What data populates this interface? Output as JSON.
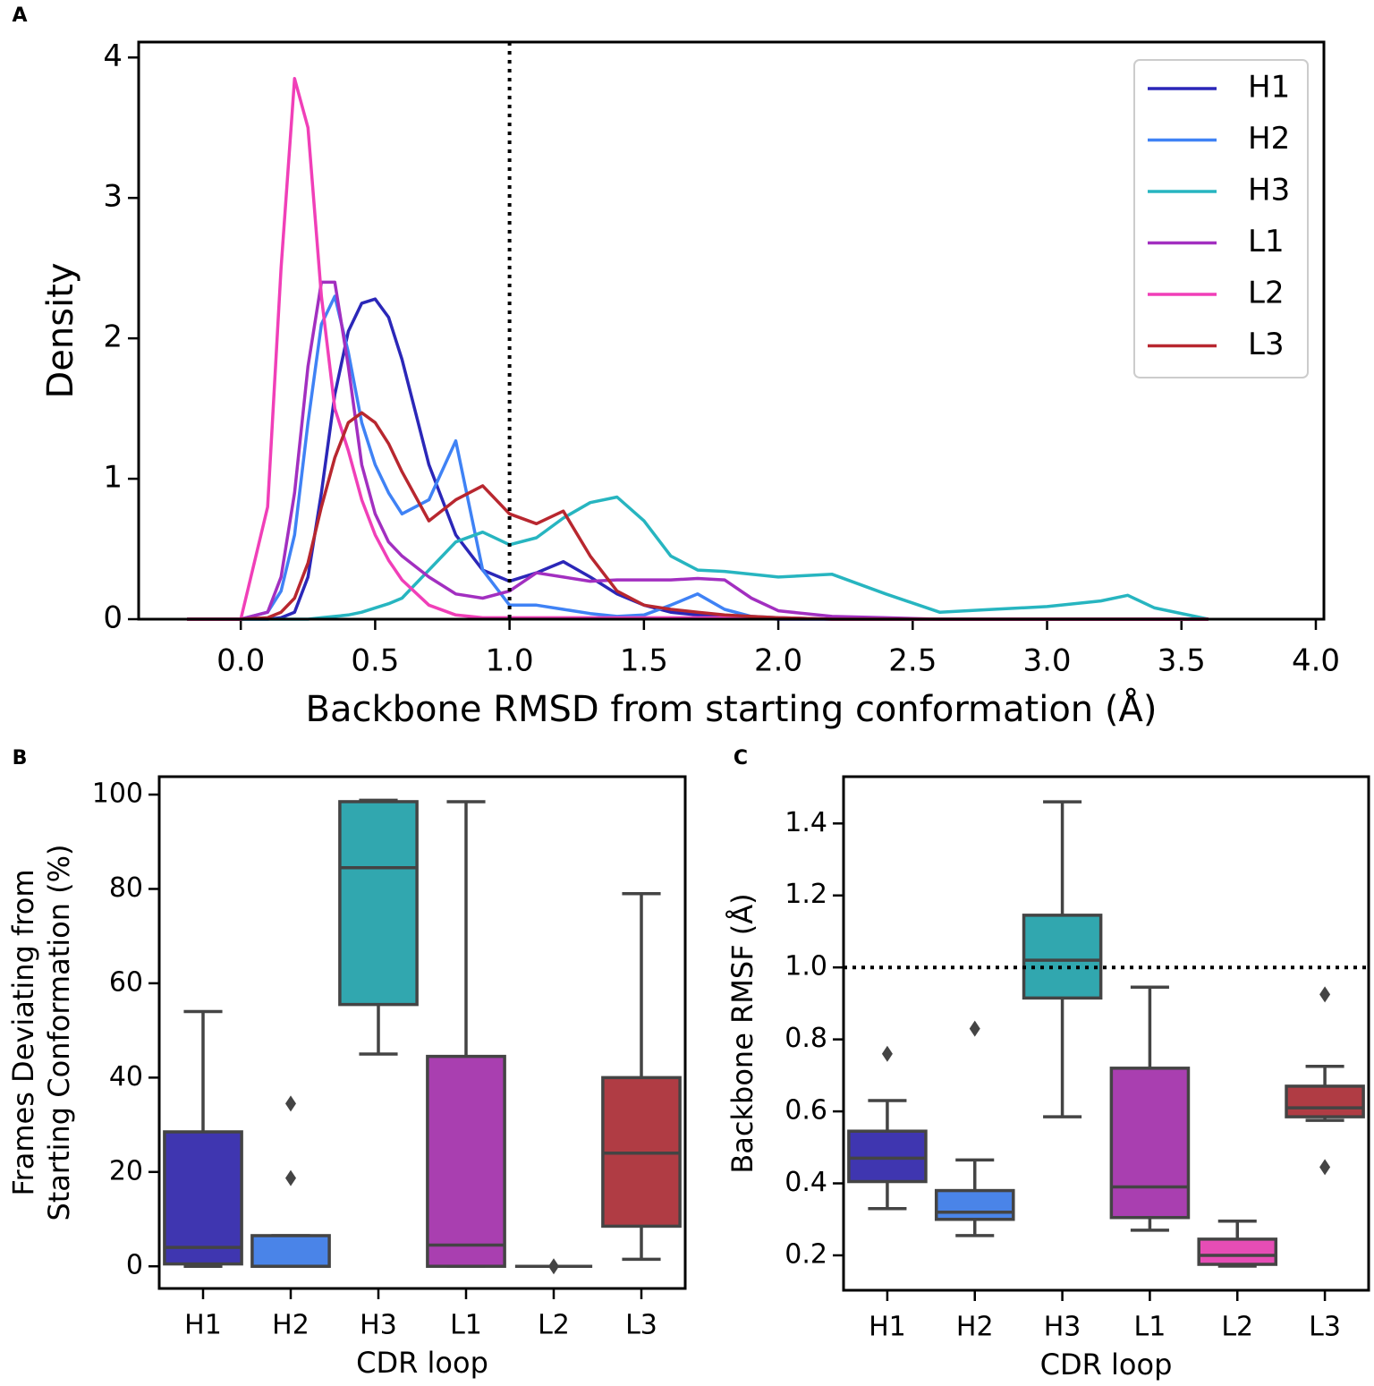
{
  "chart_data": [
    {
      "type": "line",
      "panel_label": "A",
      "xlabel": "Backbone RMSD from starting conformation (Å)",
      "ylabel": "Density",
      "x": [
        -0.2,
        0,
        0.1,
        0.15,
        0.2,
        0.25,
        0.3,
        0.35,
        0.4,
        0.45,
        0.5,
        0.55,
        0.6,
        0.7,
        0.8,
        0.9,
        1.0,
        1.1,
        1.2,
        1.3,
        1.4,
        1.5,
        1.6,
        1.7,
        1.8,
        1.9,
        2.0,
        2.2,
        2.4,
        2.6,
        2.8,
        3.0,
        3.2,
        3.3,
        3.4,
        3.6
      ],
      "series": [
        {
          "name": "H1",
          "color": "#2b27b8",
          "values": [
            0,
            0,
            0,
            0.01,
            0.05,
            0.3,
            0.9,
            1.6,
            2.05,
            2.25,
            2.28,
            2.15,
            1.85,
            1.1,
            0.6,
            0.35,
            0.27,
            0.33,
            0.41,
            0.3,
            0.18,
            0.1,
            0.05,
            0.03,
            0.02,
            0.01,
            0,
            0,
            0,
            0,
            0,
            0,
            0,
            0,
            0,
            0
          ]
        },
        {
          "name": "H2",
          "color": "#3f82f5",
          "values": [
            0,
            0,
            0.05,
            0.2,
            0.6,
            1.4,
            2.1,
            2.3,
            1.9,
            1.4,
            1.1,
            0.9,
            0.75,
            0.85,
            1.27,
            0.35,
            0.1,
            0.1,
            0.07,
            0.04,
            0.02,
            0.03,
            0.1,
            0.18,
            0.07,
            0.02,
            0.01,
            0,
            0,
            0,
            0,
            0,
            0,
            0,
            0,
            0
          ]
        },
        {
          "name": "H3",
          "color": "#27b5c0",
          "values": [
            0,
            0,
            0,
            0,
            0,
            0,
            0.01,
            0.02,
            0.03,
            0.05,
            0.08,
            0.11,
            0.15,
            0.35,
            0.55,
            0.62,
            0.53,
            0.58,
            0.72,
            0.83,
            0.87,
            0.7,
            0.45,
            0.35,
            0.34,
            0.32,
            0.3,
            0.32,
            0.18,
            0.05,
            0.07,
            0.09,
            0.13,
            0.17,
            0.08,
            0
          ]
        },
        {
          "name": "L1",
          "color": "#a22fc0",
          "values": [
            0,
            0,
            0.05,
            0.3,
            0.9,
            1.8,
            2.4,
            2.4,
            1.8,
            1.1,
            0.75,
            0.55,
            0.45,
            0.3,
            0.18,
            0.15,
            0.2,
            0.33,
            0.3,
            0.27,
            0.28,
            0.28,
            0.28,
            0.29,
            0.28,
            0.15,
            0.06,
            0.02,
            0.01,
            0,
            0,
            0,
            0,
            0,
            0,
            0
          ]
        },
        {
          "name": "L2",
          "color": "#f03fb8",
          "values": [
            0,
            0,
            0.8,
            2.5,
            3.85,
            3.5,
            2.3,
            1.5,
            1.2,
            0.85,
            0.6,
            0.42,
            0.28,
            0.1,
            0.03,
            0.01,
            0.01,
            0.01,
            0.01,
            0.01,
            0.01,
            0.01,
            0.01,
            0.01,
            0.01,
            0.01,
            0.01,
            0,
            0,
            0,
            0,
            0,
            0,
            0,
            0,
            0
          ]
        },
        {
          "name": "L3",
          "color": "#b8272f",
          "values": [
            0,
            0,
            0.01,
            0.05,
            0.15,
            0.4,
            0.8,
            1.15,
            1.4,
            1.47,
            1.4,
            1.25,
            1.05,
            0.7,
            0.85,
            0.95,
            0.75,
            0.68,
            0.77,
            0.45,
            0.2,
            0.1,
            0.07,
            0.05,
            0.03,
            0.02,
            0.01,
            0,
            0,
            0,
            0,
            0,
            0,
            0,
            0,
            0
          ]
        }
      ],
      "xlim": [
        -0.38,
        4.03
      ],
      "ylim": [
        0,
        4.11
      ],
      "xticks": [
        {
          "value": 0,
          "label": "0.0"
        },
        0.5,
        {
          "value": 1,
          "label": "1.0"
        },
        1.5,
        {
          "value": 2,
          "label": "2.0"
        },
        2.5,
        {
          "value": 3,
          "label": "3.0"
        },
        3.5,
        {
          "value": 4,
          "label": "4.0"
        }
      ],
      "yticks": [
        0,
        1,
        2,
        3,
        4
      ],
      "vline": 1,
      "legend": "upper right"
    },
    {
      "type": "box",
      "panel_label": "B",
      "xlabel": "CDR loop",
      "ylabel": [
        "Frames Deviating from",
        "Starting Conformation (%)"
      ],
      "categories": [
        "H1",
        "H2",
        "H3",
        "L1",
        "L2",
        "L3"
      ],
      "colors": [
        "#3f36b0",
        "#4a84e8",
        "#31a7af",
        "#a93fb0",
        "#e64db5",
        "#b03c44"
      ],
      "boxes": [
        {
          "min": 0,
          "q1": 0.5,
          "median": 4,
          "q3": 28.5,
          "max": 54,
          "outliers": []
        },
        {
          "min": 0,
          "q1": 0,
          "median": 0,
          "q3": 6.5,
          "max": 6.5,
          "outliers": [
            18.7,
            34.5
          ]
        },
        {
          "min": 45,
          "q1": 55.5,
          "median": 84.5,
          "q3": 98.5,
          "max": 98.8,
          "outliers": []
        },
        {
          "min": 0,
          "q1": 0,
          "median": 4.5,
          "q3": 44.5,
          "max": 98.5,
          "outliers": []
        },
        {
          "min": 0,
          "q1": 0,
          "median": 0,
          "q3": 0,
          "max": 0,
          "outliers": [
            0
          ]
        },
        {
          "min": 1.5,
          "q1": 8.5,
          "median": 24,
          "q3": 40,
          "max": 79,
          "outliers": []
        }
      ],
      "ylim": [
        -4.7,
        103.8
      ],
      "yticks": [
        0,
        20,
        40,
        60,
        80,
        100
      ]
    },
    {
      "type": "box",
      "panel_label": "C",
      "xlabel": "CDR loop",
      "ylabel": [
        "Backbone RMSF (Å)"
      ],
      "categories": [
        "H1",
        "H2",
        "H3",
        "L1",
        "L2",
        "L3"
      ],
      "colors": [
        "#3f36b0",
        "#4a84e8",
        "#31a7af",
        "#a93fb0",
        "#e64db5",
        "#b03c44"
      ],
      "boxes": [
        {
          "min": 0.33,
          "q1": 0.405,
          "median": 0.47,
          "q3": 0.545,
          "max": 0.63,
          "outliers": [
            0.76
          ]
        },
        {
          "min": 0.255,
          "q1": 0.3,
          "median": 0.32,
          "q3": 0.38,
          "max": 0.465,
          "outliers": [
            0.83
          ]
        },
        {
          "min": 0.585,
          "q1": 0.915,
          "median": 1.02,
          "q3": 1.145,
          "max": 1.46,
          "outliers": []
        },
        {
          "min": 0.27,
          "q1": 0.305,
          "median": 0.39,
          "q3": 0.72,
          "max": 0.945,
          "outliers": []
        },
        {
          "min": 0.17,
          "q1": 0.175,
          "median": 0.2,
          "q3": 0.245,
          "max": 0.295,
          "outliers": []
        },
        {
          "min": 0.575,
          "q1": 0.585,
          "median": 0.61,
          "q3": 0.67,
          "max": 0.725,
          "outliers": [
            0.925,
            0.445
          ]
        }
      ],
      "ylim": [
        0.103,
        1.53
      ],
      "yticks": [
        0.2,
        0.4,
        0.6,
        0.8,
        {
          "value": 1,
          "label": "1.0"
        },
        1.2,
        1.4
      ],
      "hline": 1
    }
  ]
}
